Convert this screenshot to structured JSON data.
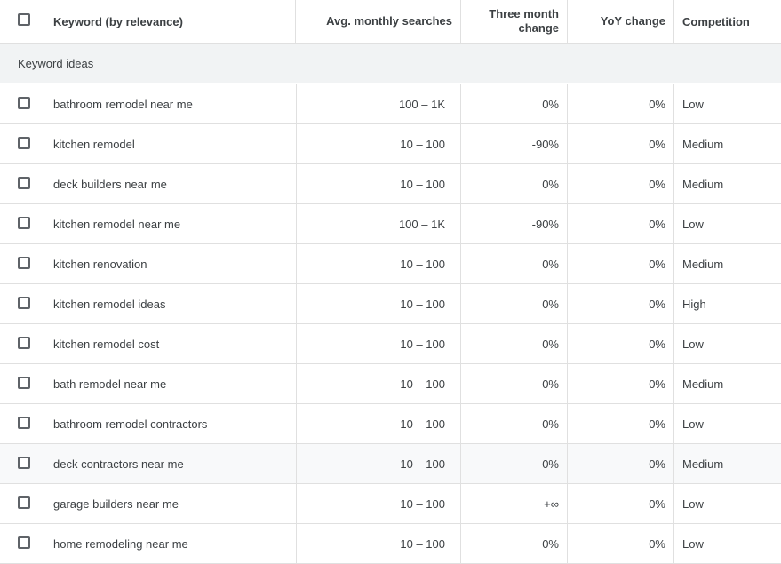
{
  "header": {
    "keyword": "Keyword (by relevance)",
    "avg_monthly": "Avg. monthly searches",
    "three_month_line1": "Three month",
    "three_month_line2": "change",
    "yoy": "YoY change",
    "competition": "Competition"
  },
  "group_label": "Keyword ideas",
  "rows": [
    {
      "keyword": "bathroom remodel near me",
      "avg": "100 – 1K",
      "three": "0%",
      "yoy": "0%",
      "comp": "Low"
    },
    {
      "keyword": "kitchen remodel",
      "avg": "10 – 100",
      "three": "-90%",
      "yoy": "0%",
      "comp": "Medium"
    },
    {
      "keyword": "deck builders near me",
      "avg": "10 – 100",
      "three": "0%",
      "yoy": "0%",
      "comp": "Medium"
    },
    {
      "keyword": "kitchen remodel near me",
      "avg": "100 – 1K",
      "three": "-90%",
      "yoy": "0%",
      "comp": "Low"
    },
    {
      "keyword": "kitchen renovation",
      "avg": "10 – 100",
      "three": "0%",
      "yoy": "0%",
      "comp": "Medium"
    },
    {
      "keyword": "kitchen remodel ideas",
      "avg": "10 – 100",
      "three": "0%",
      "yoy": "0%",
      "comp": "High"
    },
    {
      "keyword": "kitchen remodel cost",
      "avg": "10 – 100",
      "three": "0%",
      "yoy": "0%",
      "comp": "Low"
    },
    {
      "keyword": "bath remodel near me",
      "avg": "10 – 100",
      "three": "0%",
      "yoy": "0%",
      "comp": "Medium"
    },
    {
      "keyword": "bathroom remodel contractors",
      "avg": "10 – 100",
      "three": "0%",
      "yoy": "0%",
      "comp": "Low"
    },
    {
      "keyword": "deck contractors near me",
      "avg": "10 – 100",
      "three": "0%",
      "yoy": "0%",
      "comp": "Medium"
    },
    {
      "keyword": "garage builders near me",
      "avg": "10 – 100",
      "three": "+∞",
      "yoy": "0%",
      "comp": "Low"
    },
    {
      "keyword": "home remodeling near me",
      "avg": "10 – 100",
      "three": "0%",
      "yoy": "0%",
      "comp": "Low"
    }
  ]
}
